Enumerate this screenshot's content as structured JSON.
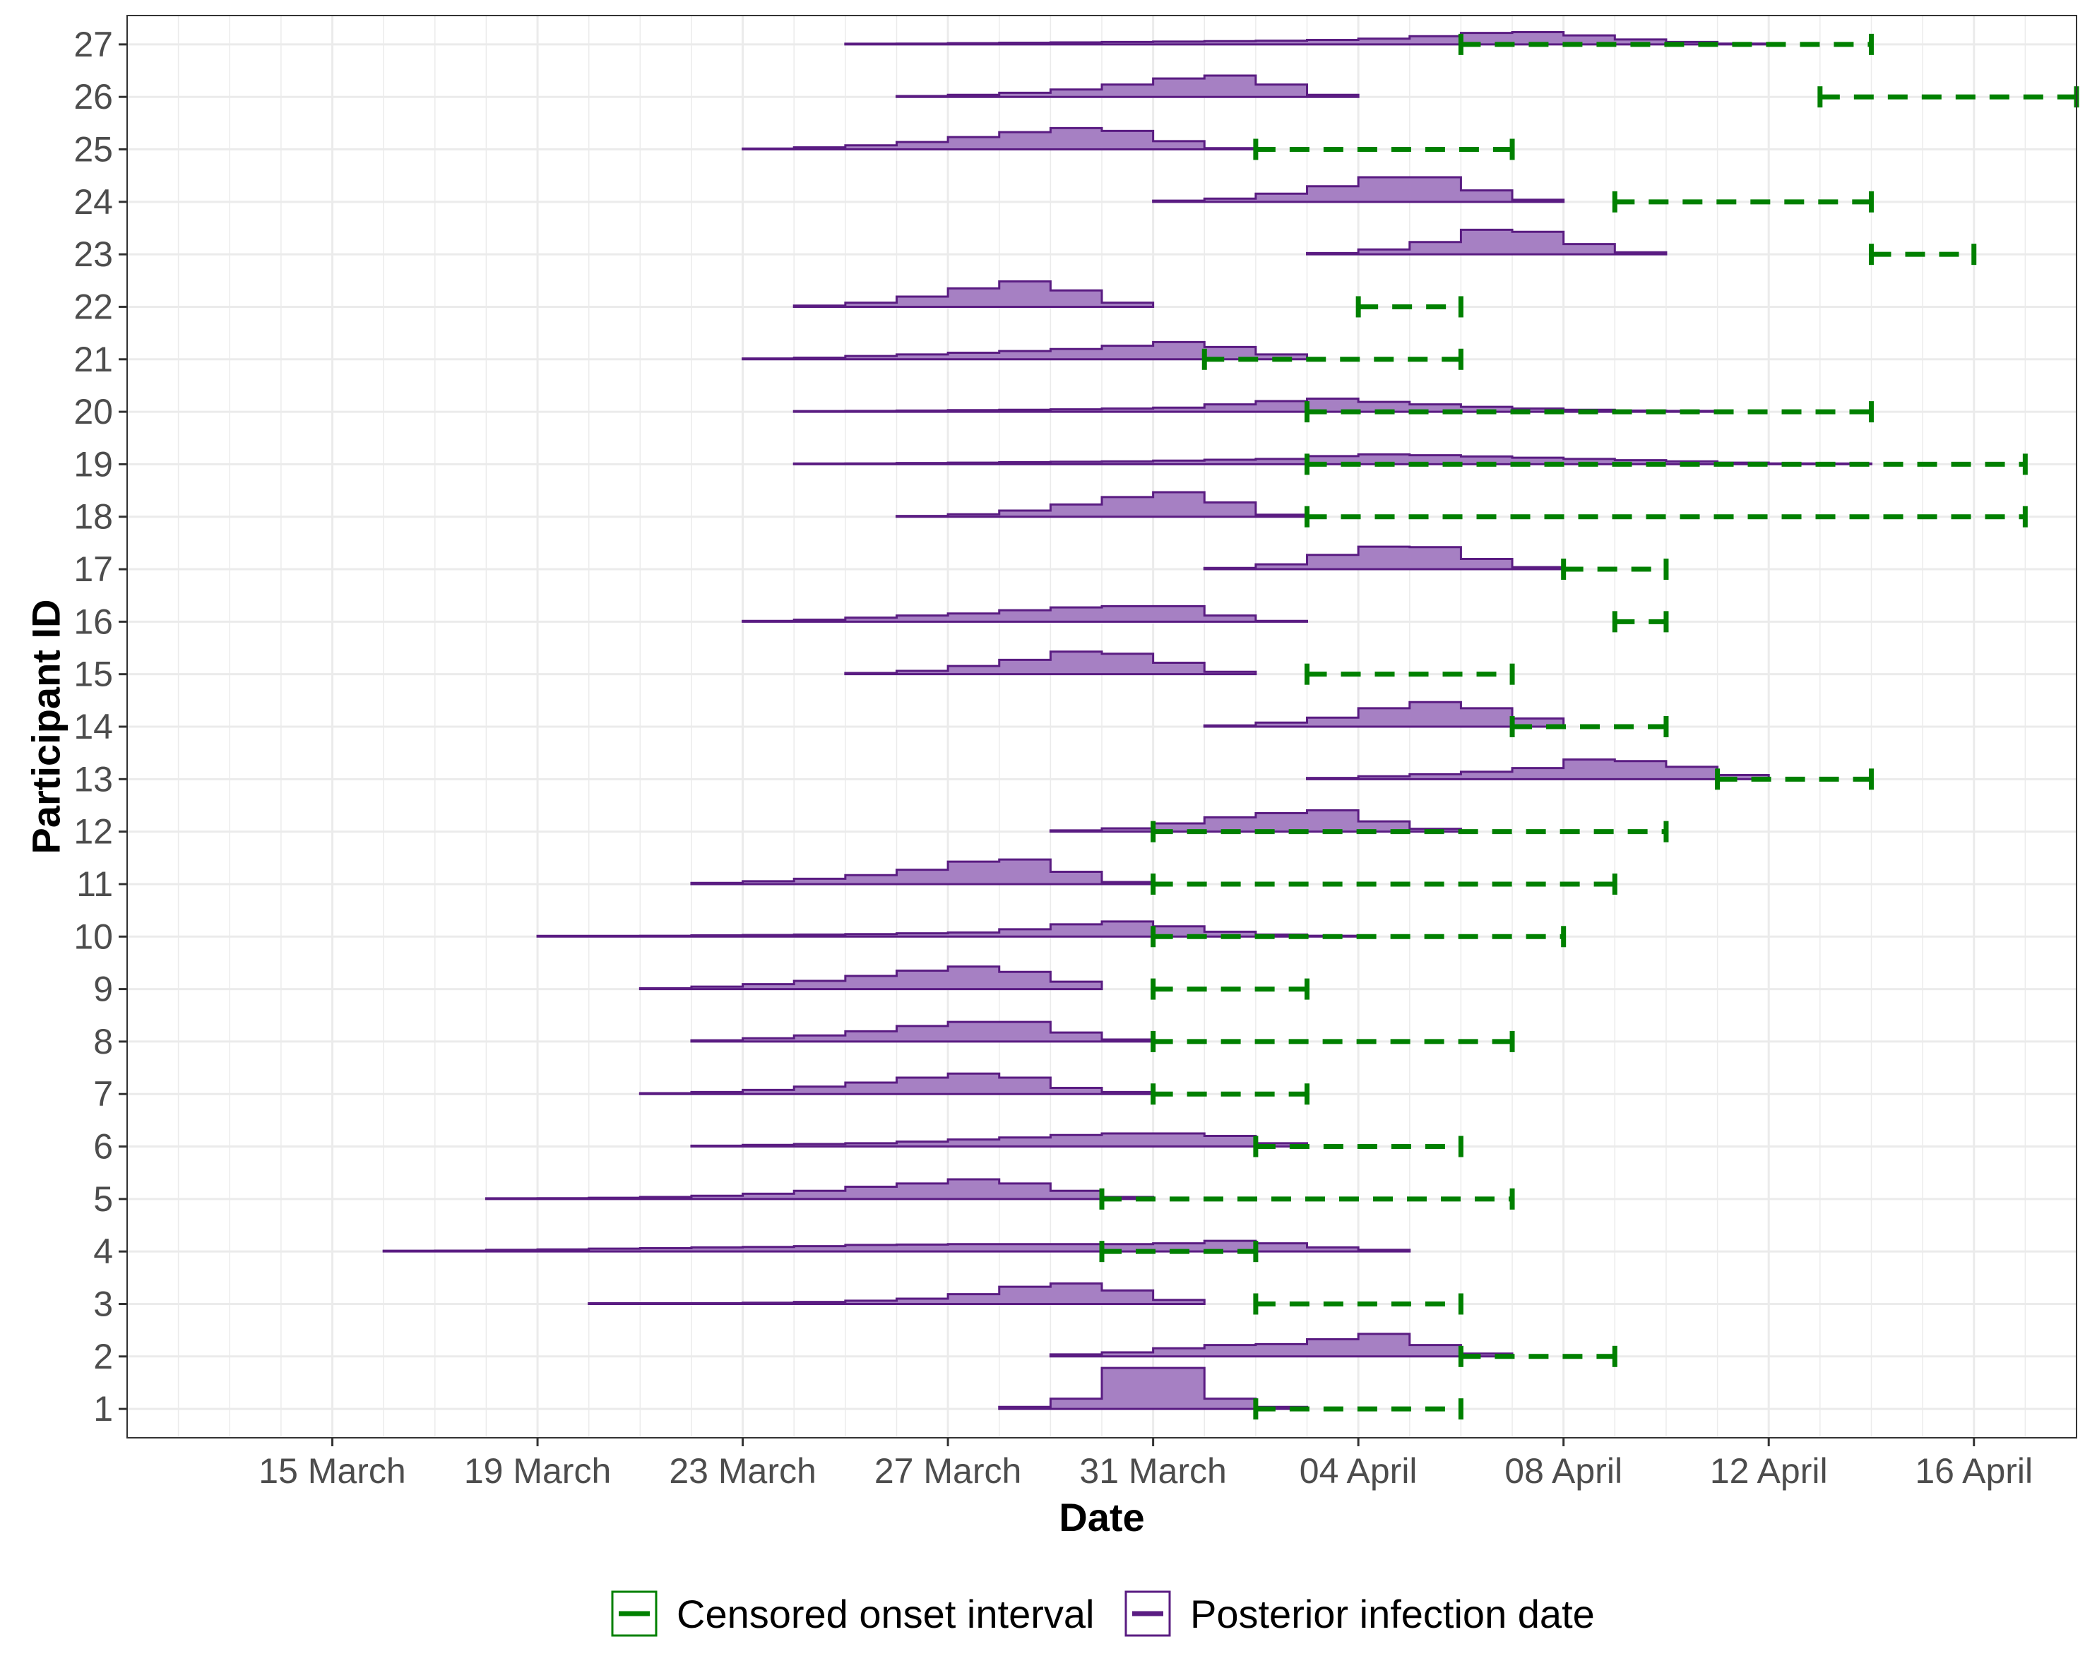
{
  "chart_data": {
    "type": "step-area-with-intervals",
    "xlabel": "Date",
    "ylabel": "Participant ID",
    "x_axis": {
      "type": "date",
      "range": [
        "2020-03-11",
        "2020-04-18"
      ],
      "ticks": [
        {
          "date": "2020-03-15",
          "label": "15 March"
        },
        {
          "date": "2020-03-19",
          "label": "19 March"
        },
        {
          "date": "2020-03-23",
          "label": "23 March"
        },
        {
          "date": "2020-03-27",
          "label": "27 March"
        },
        {
          "date": "2020-03-31",
          "label": "31 March"
        },
        {
          "date": "2020-04-04",
          "label": "04 April"
        },
        {
          "date": "2020-04-08",
          "label": "08 April"
        },
        {
          "date": "2020-04-12",
          "label": "12 April"
        },
        {
          "date": "2020-04-16",
          "label": "16 April"
        }
      ]
    },
    "y_axis": {
      "range": [
        0.45,
        27.55
      ]
    },
    "grid": true,
    "legend": {
      "position": "bottom",
      "entries": [
        {
          "label": "Censored onset interval",
          "color": "#008000"
        },
        {
          "label": "Posterior infection date",
          "color": "#5a1c82"
        }
      ]
    },
    "colors": {
      "posterior_line": "#5a1c82",
      "posterior_fill": "#a680c3",
      "censored": "#008000"
    },
    "posterior_max_relative_height": 0.78,
    "participants": [
      {
        "id": 1,
        "posterior": {
          "start": "2020-03-28",
          "weights": [
            0.05,
            0.25,
            1.0,
            1.0,
            0.25,
            0.05
          ]
        },
        "censored": [
          "2020-04-02",
          "2020-04-06"
        ]
      },
      {
        "id": 2,
        "posterior": {
          "start": "2020-03-29",
          "weights": [
            0.05,
            0.1,
            0.2,
            0.28,
            0.3,
            0.42,
            0.55,
            0.28,
            0.07
          ]
        },
        "censored": [
          "2020-04-06",
          "2020-04-09"
        ]
      },
      {
        "id": 3,
        "posterior": {
          "start": "2020-03-20",
          "weights": [
            0.01,
            0.0,
            0.02,
            0.03,
            0.05,
            0.08,
            0.13,
            0.24,
            0.42,
            0.5,
            0.33,
            0.1
          ]
        },
        "censored": [
          "2020-04-02",
          "2020-04-06"
        ]
      },
      {
        "id": 4,
        "posterior": {
          "start": "2020-03-16",
          "weights": [
            0.01,
            0.02,
            0.04,
            0.05,
            0.07,
            0.08,
            0.1,
            0.11,
            0.13,
            0.16,
            0.17,
            0.18,
            0.18,
            0.18,
            0.18,
            0.2,
            0.26,
            0.2,
            0.1,
            0.04
          ]
        },
        "censored": [
          "2020-03-30",
          "2020-04-02"
        ]
      },
      {
        "id": 5,
        "posterior": {
          "start": "2020-03-18",
          "weights": [
            0.01,
            0.02,
            0.03,
            0.05,
            0.08,
            0.13,
            0.2,
            0.3,
            0.38,
            0.48,
            0.38,
            0.2,
            0.05
          ]
        },
        "censored": [
          "2020-03-30",
          "2020-04-07"
        ]
      },
      {
        "id": 6,
        "posterior": {
          "start": "2020-03-22",
          "weights": [
            0.02,
            0.04,
            0.06,
            0.08,
            0.12,
            0.17,
            0.22,
            0.28,
            0.32,
            0.32,
            0.26,
            0.08
          ]
        },
        "censored": [
          "2020-04-02",
          "2020-04-06"
        ]
      },
      {
        "id": 7,
        "posterior": {
          "start": "2020-03-21",
          "weights": [
            0.02,
            0.05,
            0.1,
            0.18,
            0.28,
            0.4,
            0.5,
            0.4,
            0.15,
            0.05
          ]
        },
        "censored": [
          "2020-03-31",
          "2020-04-03"
        ]
      },
      {
        "id": 8,
        "posterior": {
          "start": "2020-03-22",
          "weights": [
            0.03,
            0.08,
            0.15,
            0.25,
            0.38,
            0.48,
            0.48,
            0.22,
            0.05
          ]
        },
        "censored": [
          "2020-03-31",
          "2020-04-07"
        ]
      },
      {
        "id": 9,
        "posterior": {
          "start": "2020-03-21",
          "weights": [
            0.02,
            0.06,
            0.12,
            0.2,
            0.32,
            0.45,
            0.55,
            0.42,
            0.18
          ]
        },
        "censored": [
          "2020-03-31",
          "2020-04-03"
        ]
      },
      {
        "id": 10,
        "posterior": {
          "start": "2020-03-19",
          "weights": [
            0.0,
            0.01,
            0.02,
            0.03,
            0.04,
            0.05,
            0.06,
            0.08,
            0.1,
            0.18,
            0.3,
            0.37,
            0.25,
            0.12,
            0.05,
            0.02
          ]
        },
        "censored": [
          "2020-03-31",
          "2020-04-08"
        ]
      },
      {
        "id": 11,
        "posterior": {
          "start": "2020-03-22",
          "weights": [
            0.03,
            0.07,
            0.13,
            0.22,
            0.35,
            0.55,
            0.6,
            0.3,
            0.05
          ]
        },
        "censored": [
          "2020-03-31",
          "2020-04-09"
        ]
      },
      {
        "id": 12,
        "posterior": {
          "start": "2020-03-29",
          "weights": [
            0.03,
            0.08,
            0.2,
            0.35,
            0.45,
            0.52,
            0.25,
            0.07
          ]
        },
        "censored": [
          "2020-03-31",
          "2020-04-10"
        ]
      },
      {
        "id": 13,
        "posterior": {
          "start": "2020-04-03",
          "weights": [
            0.03,
            0.07,
            0.12,
            0.18,
            0.27,
            0.48,
            0.44,
            0.3,
            0.1
          ]
        },
        "censored": [
          "2020-04-11",
          "2020-04-14"
        ]
      },
      {
        "id": 14,
        "posterior": {
          "start": "2020-04-01",
          "weights": [
            0.03,
            0.1,
            0.22,
            0.45,
            0.6,
            0.45,
            0.2
          ]
        },
        "censored": [
          "2020-04-07",
          "2020-04-10"
        ]
      },
      {
        "id": 15,
        "posterior": {
          "start": "2020-03-25",
          "weights": [
            0.03,
            0.08,
            0.2,
            0.35,
            0.55,
            0.5,
            0.28,
            0.06
          ]
        },
        "censored": [
          "2020-04-03",
          "2020-04-07"
        ]
      },
      {
        "id": 16,
        "posterior": {
          "start": "2020-03-23",
          "weights": [
            0.02,
            0.05,
            0.1,
            0.15,
            0.2,
            0.28,
            0.35,
            0.38,
            0.38,
            0.15,
            0.02
          ]
        },
        "censored": [
          "2020-04-09",
          "2020-04-10"
        ]
      },
      {
        "id": 17,
        "posterior": {
          "start": "2020-04-01",
          "weights": [
            0.03,
            0.12,
            0.35,
            0.55,
            0.54,
            0.25,
            0.05
          ]
        },
        "censored": [
          "2020-04-08",
          "2020-04-10"
        ]
      },
      {
        "id": 18,
        "posterior": {
          "start": "2020-03-26",
          "weights": [
            0.02,
            0.06,
            0.15,
            0.3,
            0.48,
            0.6,
            0.35,
            0.05
          ]
        },
        "censored": [
          "2020-04-03",
          "2020-04-17"
        ]
      },
      {
        "id": 19,
        "posterior": {
          "start": "2020-03-24",
          "weights": [
            0.01,
            0.02,
            0.03,
            0.04,
            0.05,
            0.06,
            0.07,
            0.09,
            0.11,
            0.13,
            0.2,
            0.24,
            0.22,
            0.19,
            0.16,
            0.13,
            0.1,
            0.07,
            0.04,
            0.02,
            0.01
          ]
        },
        "censored": [
          "2020-04-03",
          "2020-04-17"
        ]
      },
      {
        "id": 20,
        "posterior": {
          "start": "2020-03-24",
          "weights": [
            0.01,
            0.02,
            0.03,
            0.04,
            0.05,
            0.06,
            0.08,
            0.1,
            0.18,
            0.26,
            0.32,
            0.24,
            0.18,
            0.12,
            0.08,
            0.05,
            0.03,
            0.02
          ]
        },
        "censored": [
          "2020-04-03",
          "2020-04-14"
        ]
      },
      {
        "id": 21,
        "posterior": {
          "start": "2020-03-23",
          "weights": [
            0.02,
            0.04,
            0.08,
            0.12,
            0.16,
            0.2,
            0.25,
            0.33,
            0.42,
            0.3,
            0.12
          ]
        },
        "censored": [
          "2020-04-01",
          "2020-04-06"
        ]
      },
      {
        "id": 22,
        "posterior": {
          "start": "2020-03-24",
          "weights": [
            0.03,
            0.1,
            0.25,
            0.45,
            0.62,
            0.4,
            0.1
          ]
        },
        "censored": [
          "2020-04-04",
          "2020-04-06"
        ]
      },
      {
        "id": 23,
        "posterior": {
          "start": "2020-04-03",
          "weights": [
            0.03,
            0.12,
            0.3,
            0.6,
            0.55,
            0.25,
            0.05
          ]
        },
        "censored": [
          "2020-04-14",
          "2020-04-16"
        ]
      },
      {
        "id": 24,
        "posterior": {
          "start": "2020-03-31",
          "weights": [
            0.03,
            0.08,
            0.2,
            0.38,
            0.6,
            0.6,
            0.28,
            0.05
          ]
        },
        "censored": [
          "2020-04-09",
          "2020-04-14"
        ]
      },
      {
        "id": 25,
        "posterior": {
          "start": "2020-03-23",
          "weights": [
            0.02,
            0.05,
            0.1,
            0.18,
            0.3,
            0.42,
            0.52,
            0.45,
            0.2,
            0.03
          ]
        },
        "censored": [
          "2020-04-02",
          "2020-04-07"
        ]
      },
      {
        "id": 26,
        "posterior": {
          "start": "2020-03-26",
          "weights": [
            0.02,
            0.05,
            0.1,
            0.18,
            0.3,
            0.45,
            0.52,
            0.3,
            0.05
          ]
        },
        "censored": [
          "2020-04-13",
          "2020-04-18"
        ]
      },
      {
        "id": 27,
        "posterior": {
          "start": "2020-03-25",
          "weights": [
            0.01,
            0.02,
            0.03,
            0.04,
            0.05,
            0.06,
            0.07,
            0.08,
            0.09,
            0.11,
            0.14,
            0.2,
            0.28,
            0.3,
            0.22,
            0.12,
            0.06,
            0.02
          ]
        },
        "censored": [
          "2020-04-06",
          "2020-04-14"
        ]
      }
    ]
  }
}
